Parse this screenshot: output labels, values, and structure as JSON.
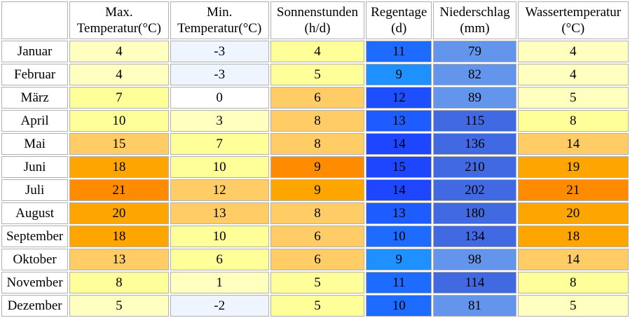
{
  "headers": {
    "max_line1": "Max.",
    "max_line2": "Temperatur(°C)",
    "min_line1": "Min.",
    "min_line2": "Temperatur(°C)",
    "sun_line1": "Sonnenstunden",
    "sun_line2": "(h/d)",
    "rain_line1": "Regentage",
    "rain_line2": "(d)",
    "precip_line1": "Niederschlag",
    "precip_line2": "(mm)",
    "water_line1": "Wassertemperatur",
    "water_line2": "(°C)"
  },
  "rows": [
    {
      "month": "Januar",
      "max": "4",
      "min": "-3",
      "sun": "4",
      "rain": "11",
      "precip": "79",
      "water": "4"
    },
    {
      "month": "Februar",
      "max": "4",
      "min": "-3",
      "sun": "5",
      "rain": "9",
      "precip": "82",
      "water": "4"
    },
    {
      "month": "März",
      "max": "7",
      "min": "0",
      "sun": "6",
      "rain": "12",
      "precip": "89",
      "water": "5"
    },
    {
      "month": "April",
      "max": "10",
      "min": "3",
      "sun": "8",
      "rain": "13",
      "precip": "115",
      "water": "8"
    },
    {
      "month": "Mai",
      "max": "15",
      "min": "7",
      "sun": "8",
      "rain": "14",
      "precip": "136",
      "water": "14"
    },
    {
      "month": "Juni",
      "max": "18",
      "min": "10",
      "sun": "9",
      "rain": "15",
      "precip": "210",
      "water": "19"
    },
    {
      "month": "Juli",
      "max": "21",
      "min": "12",
      "sun": "9",
      "rain": "14",
      "precip": "202",
      "water": "21"
    },
    {
      "month": "August",
      "max": "20",
      "min": "13",
      "sun": "8",
      "rain": "13",
      "precip": "180",
      "water": "20"
    },
    {
      "month": "September",
      "max": "18",
      "min": "10",
      "sun": "6",
      "rain": "10",
      "precip": "134",
      "water": "18"
    },
    {
      "month": "Oktober",
      "max": "13",
      "min": "6",
      "sun": "6",
      "rain": "9",
      "precip": "98",
      "water": "14"
    },
    {
      "month": "November",
      "max": "8",
      "min": "1",
      "sun": "5",
      "rain": "11",
      "precip": "114",
      "water": "8"
    },
    {
      "month": "Dezember",
      "max": "5",
      "min": "-2",
      "sun": "5",
      "rain": "10",
      "precip": "81",
      "water": "5"
    }
  ],
  "colors": {
    "max": [
      "#ffffc0",
      "#ffffc0",
      "#ffff99",
      "#ffff99",
      "#ffcc66",
      "#ffa500",
      "#ff8c00",
      "#ffa500",
      "#ffa500",
      "#ffcc66",
      "#ffff99",
      "#ffffc0"
    ],
    "min": [
      "#eef5ff",
      "#eef5ff",
      "#ffffff",
      "#ffffc0",
      "#ffff99",
      "#ffff99",
      "#ffcc66",
      "#ffcc66",
      "#ffff99",
      "#ffff99",
      "#ffffc0",
      "#eef5ff"
    ],
    "sun": [
      "#ffff99",
      "#ffff99",
      "#ffcc66",
      "#ffcc66",
      "#ffcc66",
      "#ff8c00",
      "#ffa500",
      "#ffcc66",
      "#ffcc66",
      "#ffcc66",
      "#ffff99",
      "#ffff99"
    ],
    "rain": [
      "#1e6cff",
      "#1e90ff",
      "#1e4fff",
      "#1e5cff",
      "#1e46ff",
      "#1e46ff",
      "#1e46ff",
      "#1e5cff",
      "#1e6cff",
      "#1e90ff",
      "#1e6cff",
      "#1e6cff"
    ],
    "precip": [
      "#6495ed",
      "#6495ed",
      "#6495ed",
      "#4169e1",
      "#4169e1",
      "#4169e1",
      "#4169e1",
      "#4169e1",
      "#4169e1",
      "#6495ed",
      "#4169e1",
      "#6495ed"
    ],
    "water": [
      "#ffffc0",
      "#ffffc0",
      "#ffffc0",
      "#ffff99",
      "#ffcc66",
      "#ffa500",
      "#ff8c00",
      "#ffa500",
      "#ffa500",
      "#ffcc66",
      "#ffff99",
      "#ffffc0"
    ]
  }
}
